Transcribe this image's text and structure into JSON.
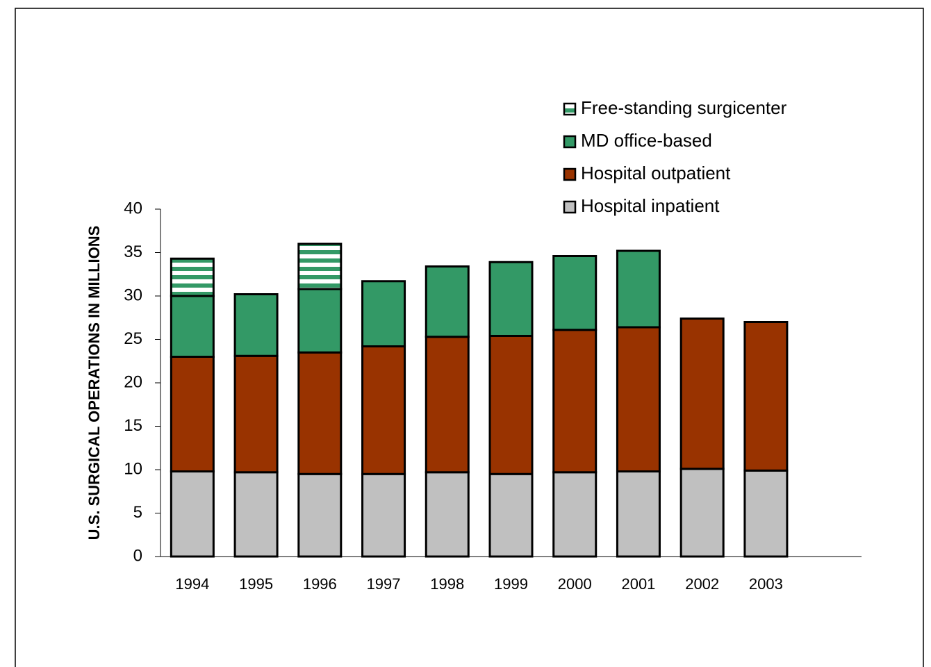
{
  "chart_data": {
    "type": "stacked_bar",
    "ylabel": "U.S. SURGICAL OPERATIONS IN MILLIONS",
    "categories": [
      "1994",
      "1995",
      "1996",
      "1997",
      "1998",
      "1999",
      "2000",
      "2001",
      "2002",
      "2003"
    ],
    "series": [
      {
        "name": "Hospital inpatient",
        "color": "#c0c0c0",
        "values": [
          9.8,
          9.7,
          9.5,
          9.5,
          9.7,
          9.5,
          9.7,
          9.8,
          10.1,
          9.9
        ]
      },
      {
        "name": "Hospital outpatient",
        "color": "#993300",
        "values": [
          13.2,
          13.4,
          14.0,
          14.7,
          15.6,
          15.9,
          16.4,
          16.6,
          17.3,
          17.1
        ]
      },
      {
        "name": "MD office-based",
        "color": "#339966",
        "values": [
          7.0,
          7.1,
          7.3,
          7.5,
          8.1,
          8.5,
          8.5,
          8.8,
          null,
          null
        ]
      },
      {
        "name": "Free-standing surgicenter",
        "color": "#339966",
        "pattern": "horizontal-stripes",
        "values": [
          4.3,
          null,
          5.2,
          null,
          null,
          null,
          null,
          null,
          null,
          null
        ]
      }
    ],
    "ylim": [
      0,
      40
    ],
    "yticks": [
      0,
      5,
      10,
      15,
      20,
      25,
      30,
      35,
      40
    ],
    "legend": "upper right"
  }
}
